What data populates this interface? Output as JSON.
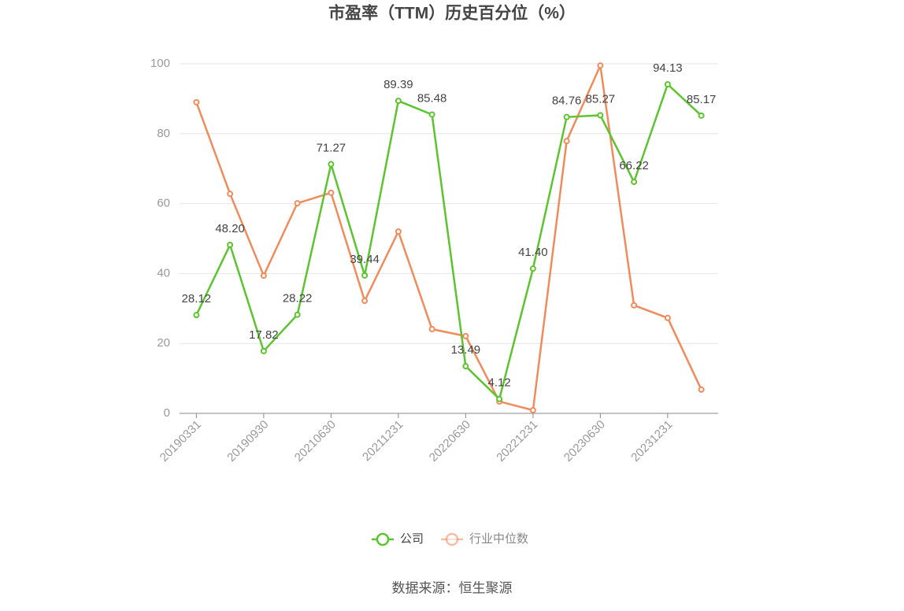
{
  "chart_data": {
    "type": "line",
    "title": "市盈率（TTM）历史百分位（%）",
    "source": "数据来源：恒生聚源",
    "categories": [
      "20190331",
      null,
      "20190930",
      null,
      "20210630",
      null,
      "20211231",
      null,
      "20220630",
      null,
      "20221231",
      null,
      "20230630",
      null,
      "20231231",
      null
    ],
    "series": [
      {
        "name": "公司",
        "color": "#5cc42e",
        "values": [
          28.12,
          48.2,
          17.82,
          28.22,
          71.27,
          39.44,
          89.39,
          85.48,
          13.49,
          4.12,
          41.4,
          84.76,
          85.27,
          66.22,
          94.13,
          85.17
        ],
        "value_labels": [
          "28.12",
          "48.20",
          "17.82",
          "28.22",
          "71.27",
          "39.44",
          "89.39",
          "85.48",
          "13.49",
          "4.12",
          "41.40",
          "84.76",
          "85.27",
          "66.22",
          "94.13",
          "85.17"
        ]
      },
      {
        "name": "行业中位数",
        "color": "#f08c5c",
        "values": [
          89.0,
          62.8,
          39.4,
          60.1,
          63.1,
          32.2,
          52.0,
          24.1,
          22.1,
          3.4,
          0.9,
          77.9,
          99.5,
          30.9,
          27.3,
          6.8
        ]
      }
    ],
    "ylim": [
      0,
      100
    ],
    "yticks": [
      0,
      20,
      40,
      60,
      80,
      100
    ],
    "grid": true,
    "legend": "bottom"
  }
}
